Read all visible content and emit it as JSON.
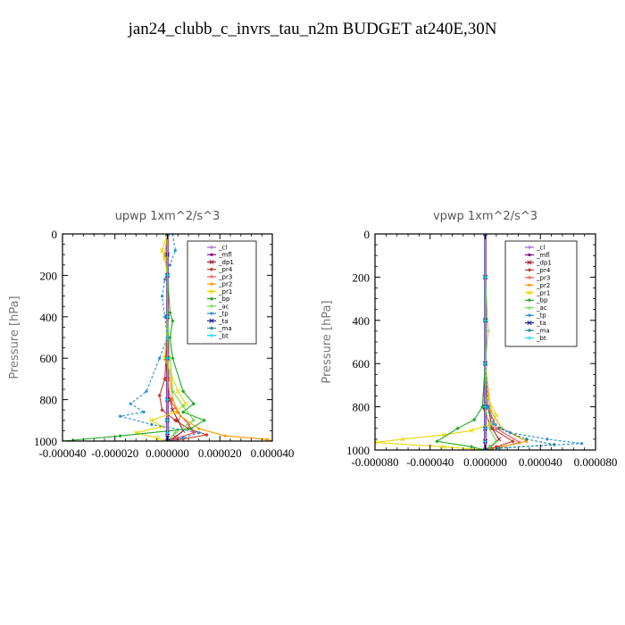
{
  "title": "jan24_clubb_c_invrs_tau_n2m  BUDGET at240E,30N",
  "series_styles": [
    {
      "name": "_cl",
      "color": "#9b59d0"
    },
    {
      "name": "_mfl",
      "color": "#800080"
    },
    {
      "name": "_dp1",
      "color": "#a0203c"
    },
    {
      "name": "_pr4",
      "color": "#c0392b"
    },
    {
      "name": "_pr3",
      "color": "#ff4444"
    },
    {
      "name": "_pr2",
      "color": "#ff9900"
    },
    {
      "name": "_pr1",
      "color": "#e6d800"
    },
    {
      "name": "_bp",
      "color": "#22aa22"
    },
    {
      "name": "_ac",
      "color": "#66dd44"
    },
    {
      "name": "_tp",
      "color": "#2a8fd6"
    },
    {
      "name": "_ta",
      "color": "#1a1a8a"
    },
    {
      "name": "_ma",
      "color": "#1f8a9a"
    },
    {
      "name": "_bt",
      "color": "#00d8ff"
    }
  ],
  "chart_data": [
    {
      "type": "line",
      "title": "upwp   1xm^2/s^3",
      "ylabel": "Pressure  [hPa]",
      "xlim": [
        -4e-05,
        4e-05
      ],
      "ylim": [
        1000,
        0
      ],
      "xticks": [
        "-0.000040",
        "-0.000020",
        "0.000000",
        "0.000020",
        "0.000040"
      ],
      "yticks": [
        "0",
        "200",
        "400",
        "600",
        "800",
        "1000"
      ],
      "series": [
        {
          "name": "_cl",
          "x": [
            0,
            0,
            0,
            0,
            0,
            0,
            0,
            0,
            0
          ],
          "y": [
            0,
            100,
            200,
            400,
            600,
            800,
            900,
            960,
            1000
          ]
        },
        {
          "name": "_mfl",
          "x": [
            0,
            0,
            0,
            0,
            0,
            0,
            0,
            0,
            0
          ],
          "y": [
            0,
            100,
            200,
            400,
            600,
            800,
            900,
            960,
            1000
          ]
        },
        {
          "name": "_dp1",
          "x": [
            0,
            0,
            0,
            -5e-07,
            0,
            1e-06,
            2e-06,
            4e-06,
            6e-06,
            3e-06,
            0
          ],
          "y": [
            0,
            200,
            400,
            600,
            700,
            800,
            850,
            900,
            950,
            980,
            1000
          ]
        },
        {
          "name": "_pr4",
          "x": [
            0,
            0,
            0,
            -5e-07,
            -1e-06,
            -3e-06,
            -2e-06,
            3e-06,
            8e-06,
            1.5e-05,
            6e-06,
            0
          ],
          "y": [
            0,
            200,
            400,
            600,
            700,
            780,
            850,
            900,
            940,
            970,
            990,
            1000
          ]
        },
        {
          "name": "_pr3",
          "x": [
            0,
            0,
            0,
            0,
            0,
            1e-06,
            4e-06,
            8e-06,
            1e-05,
            4e-06,
            0
          ],
          "y": [
            0,
            200,
            400,
            600,
            700,
            800,
            860,
            920,
            960,
            985,
            1000
          ]
        },
        {
          "name": "_pr2",
          "x": [
            0,
            -1e-06,
            0,
            0,
            0,
            2e-06,
            5e-06,
            1.2e-05,
            2.2e-05,
            3.8e-05,
            4e-05
          ],
          "y": [
            0,
            100,
            200,
            400,
            600,
            800,
            880,
            940,
            975,
            992,
            1000
          ]
        },
        {
          "name": "_pr1",
          "x": [
            0,
            -2e-06,
            -1e-06,
            0,
            0,
            -1e-06,
            4e-06,
            7e-06,
            3e-06,
            -6e-06,
            -2e-06,
            -1.2e-05,
            -4e-06,
            0
          ],
          "y": [
            0,
            80,
            120,
            200,
            400,
            600,
            760,
            820,
            860,
            900,
            930,
            960,
            985,
            1000
          ]
        },
        {
          "name": "_bp",
          "x": [
            0,
            0,
            1e-06,
            2e-06,
            1e-06,
            2e-06,
            6e-06,
            1e-05,
            6e-06,
            1.4e-05,
            9e-06,
            -1.8e-05,
            -4e-05
          ],
          "y": [
            0,
            200,
            380,
            420,
            500,
            600,
            760,
            820,
            860,
            900,
            940,
            975,
            1000
          ]
        },
        {
          "name": "_ac",
          "x": [
            0,
            0,
            0,
            1e-06,
            2e-06,
            6e-06,
            1e-05,
            3e-06,
            0
          ],
          "y": [
            0,
            200,
            400,
            600,
            760,
            830,
            900,
            960,
            1000
          ]
        },
        {
          "name": "_tp",
          "x": [
            2e-06,
            3e-06,
            1e-06,
            -1e-06,
            -2e-06,
            -1e-06,
            0,
            -3e-06,
            -8e-06,
            -1.4e-05,
            -9e-06,
            -1.8e-05,
            -6e-06,
            1.2e-05,
            6e-06,
            0
          ],
          "y": [
            0,
            80,
            150,
            220,
            300,
            400,
            500,
            600,
            760,
            820,
            860,
            880,
            920,
            960,
            985,
            1000
          ]
        },
        {
          "name": "_ta",
          "x": [
            0,
            0,
            0,
            0,
            0,
            0,
            0,
            0,
            0,
            0
          ],
          "y": [
            0,
            100,
            200,
            400,
            600,
            800,
            900,
            960,
            985,
            1000
          ]
        },
        {
          "name": "_ma",
          "x": [
            0,
            0,
            0,
            0,
            0,
            0,
            0,
            0
          ],
          "y": [
            0,
            200,
            400,
            600,
            800,
            900,
            960,
            1000
          ]
        },
        {
          "name": "_bt",
          "x": [
            0,
            0,
            0,
            0,
            0,
            0,
            0,
            0
          ],
          "y": [
            0,
            200,
            400,
            600,
            800,
            900,
            960,
            1000
          ]
        }
      ]
    },
    {
      "type": "line",
      "title": "vpwp   1xm^2/s^3",
      "ylabel": "Pressure  [hPa]",
      "xlim": [
        -8e-05,
        8e-05
      ],
      "ylim": [
        1000,
        0
      ],
      "xticks": [
        "-0.000080",
        "-0.000040",
        "0.000000",
        "0.000040",
        "0.000080"
      ],
      "yticks": [
        "0",
        "200",
        "400",
        "600",
        "800",
        "1000"
      ],
      "series": [
        {
          "name": "_cl",
          "x": [
            0,
            0,
            0,
            0,
            0,
            0,
            0,
            0
          ],
          "y": [
            0,
            200,
            400,
            600,
            800,
            900,
            960,
            1000
          ]
        },
        {
          "name": "_mfl",
          "x": [
            0,
            0,
            0,
            0,
            0,
            0,
            0,
            0
          ],
          "y": [
            0,
            200,
            400,
            600,
            800,
            900,
            960,
            1000
          ]
        },
        {
          "name": "_dp1",
          "x": [
            0,
            0,
            0,
            0,
            2e-06,
            5e-06,
            1e-05,
            4e-06,
            0
          ],
          "y": [
            0,
            200,
            400,
            600,
            800,
            900,
            950,
            985,
            1000
          ]
        },
        {
          "name": "_pr4",
          "x": [
            0,
            0,
            0,
            0,
            -2e-06,
            5e-06,
            2e-05,
            8e-06,
            0
          ],
          "y": [
            0,
            200,
            400,
            600,
            800,
            900,
            960,
            985,
            1000
          ]
        },
        {
          "name": "_pr3",
          "x": [
            0,
            0,
            0,
            0,
            2e-06,
            8e-06,
            2.5e-05,
            1e-05,
            0
          ],
          "y": [
            0,
            200,
            400,
            600,
            800,
            900,
            965,
            988,
            1000
          ]
        },
        {
          "name": "_pr2",
          "x": [
            0,
            0,
            0,
            0,
            4e-06,
            1.2e-05,
            3e-05,
            1.2e-05,
            0
          ],
          "y": [
            0,
            200,
            400,
            600,
            820,
            900,
            960,
            985,
            1000
          ]
        },
        {
          "name": "_pr1",
          "x": [
            0,
            0,
            0,
            0,
            2e-06,
            8e-06,
            4e-06,
            -1e-05,
            -3e-05,
            -6e-05,
            -8e-05,
            -3e-05,
            0
          ],
          "y": [
            0,
            200,
            400,
            600,
            760,
            840,
            880,
            910,
            930,
            950,
            965,
            985,
            1000
          ]
        },
        {
          "name": "_bp",
          "x": [
            0,
            0,
            0,
            0,
            -2e-06,
            -8e-06,
            -2e-05,
            -3.5e-05,
            -1e-05,
            0
          ],
          "y": [
            0,
            200,
            400,
            600,
            800,
            860,
            900,
            960,
            985,
            1000
          ]
        },
        {
          "name": "_ac",
          "x": [
            0,
            0,
            2e-06,
            0,
            0,
            3e-06,
            8e-06,
            3e-06,
            0
          ],
          "y": [
            0,
            200,
            450,
            600,
            800,
            900,
            960,
            985,
            1000
          ]
        },
        {
          "name": "_tp",
          "x": [
            0,
            0,
            0,
            0,
            2e-06,
            6e-06,
            1.8e-05,
            4.5e-05,
            7e-05,
            1e-05,
            0
          ],
          "y": [
            0,
            200,
            400,
            600,
            800,
            880,
            920,
            950,
            970,
            990,
            1000
          ]
        },
        {
          "name": "_ta",
          "x": [
            0,
            0,
            0,
            0,
            0,
            0,
            0,
            0
          ],
          "y": [
            0,
            200,
            400,
            600,
            800,
            900,
            960,
            1000
          ]
        },
        {
          "name": "_ma",
          "x": [
            0,
            0,
            0,
            0,
            0,
            1e-05,
            3e-05,
            5e-05,
            1e-05,
            0
          ],
          "y": [
            0,
            200,
            400,
            600,
            800,
            900,
            950,
            975,
            992,
            1000
          ]
        },
        {
          "name": "_bt",
          "x": [
            0,
            0,
            0,
            0,
            0,
            0,
            0,
            0
          ],
          "y": [
            0,
            200,
            400,
            600,
            800,
            900,
            960,
            1000
          ]
        }
      ]
    }
  ]
}
